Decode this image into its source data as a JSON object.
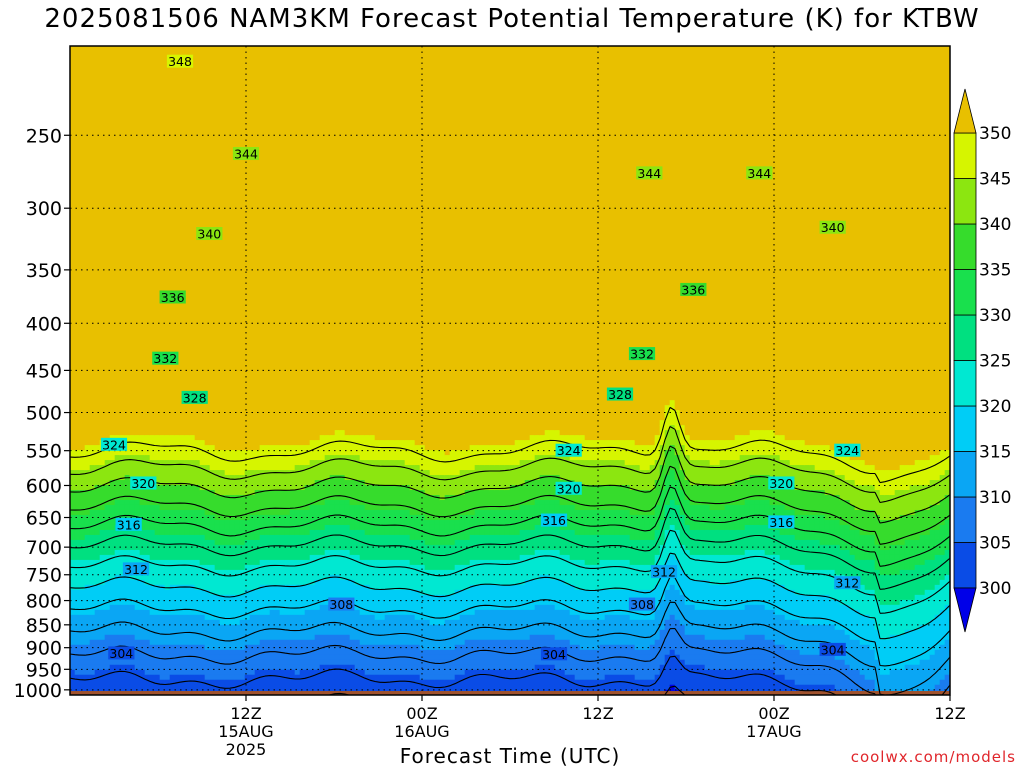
{
  "chart_data": {
    "type": "heatmap",
    "title": "2025081506 NAM3KM Forecast Potential Temperature (K) for KTBW",
    "xlabel": "Forecast Time (UTC)",
    "ylabel": "",
    "credit": "coolwx.com/models",
    "x": {
      "unit": "forecast hour",
      "range": [
        -6,
        54
      ]
    },
    "y_levels_hpa": [
      250,
      300,
      350,
      400,
      450,
      500,
      550,
      600,
      650,
      700,
      750,
      800,
      850,
      900,
      950,
      1000
    ],
    "ylim_hpa": [
      200,
      1013
    ],
    "x_ticks": [
      {
        "hour": 6,
        "lines": [
          "12Z",
          "15AUG",
          "2025"
        ]
      },
      {
        "hour": 18,
        "lines": [
          "00Z",
          "16AUG"
        ]
      },
      {
        "hour": 30,
        "lines": [
          "12Z"
        ]
      },
      {
        "hour": 42,
        "lines": [
          "00Z",
          "17AUG"
        ]
      },
      {
        "hour": 54,
        "lines": [
          "12Z"
        ]
      }
    ],
    "colorbar": {
      "levels": [
        300,
        305,
        310,
        315,
        320,
        325,
        330,
        335,
        340,
        345,
        350
      ],
      "colors": [
        "#0000e8",
        "#0a4ce6",
        "#1a7bf0",
        "#0aa6f4",
        "#00cdf6",
        "#00e8d2",
        "#00e080",
        "#19e04d",
        "#36dc2c",
        "#8ce610",
        "#d6f500",
        "#fdfb00",
        "#e8c000"
      ],
      "extend": "both"
    },
    "ground_color": "#a0522d",
    "contour_interval": 4,
    "contour_levels": [
      300,
      304,
      308,
      312,
      316,
      320,
      324,
      328,
      332,
      336,
      340,
      344,
      348
    ],
    "contour_labels": [
      {
        "value": 348,
        "hour": 1.5,
        "hpa": 208
      },
      {
        "value": 344,
        "hour": 6,
        "hpa": 262
      },
      {
        "value": 344,
        "hour": 33.5,
        "hpa": 275
      },
      {
        "value": 344,
        "hour": 41,
        "hpa": 275
      },
      {
        "value": 340,
        "hour": 3.5,
        "hpa": 320
      },
      {
        "value": 340,
        "hour": 46,
        "hpa": 315
      },
      {
        "value": 336,
        "hour": 1,
        "hpa": 375
      },
      {
        "value": 336,
        "hour": 36.5,
        "hpa": 368
      },
      {
        "value": 332,
        "hour": 0.5,
        "hpa": 437
      },
      {
        "value": 332,
        "hour": 33,
        "hpa": 432
      },
      {
        "value": 328,
        "hour": 2.5,
        "hpa": 482
      },
      {
        "value": 328,
        "hour": 31.5,
        "hpa": 478
      },
      {
        "value": 324,
        "hour": -3,
        "hpa": 542
      },
      {
        "value": 324,
        "hour": 28,
        "hpa": 550
      },
      {
        "value": 324,
        "hour": 47,
        "hpa": 550
      },
      {
        "value": 320,
        "hour": -1,
        "hpa": 597
      },
      {
        "value": 320,
        "hour": 28,
        "hpa": 605
      },
      {
        "value": 320,
        "hour": 42.5,
        "hpa": 597
      },
      {
        "value": 316,
        "hour": -2,
        "hpa": 662
      },
      {
        "value": 316,
        "hour": 27,
        "hpa": 655
      },
      {
        "value": 316,
        "hour": 42.5,
        "hpa": 658
      },
      {
        "value": 312,
        "hour": -1.5,
        "hpa": 740
      },
      {
        "value": 312,
        "hour": 34.5,
        "hpa": 745
      },
      {
        "value": 312,
        "hour": 47,
        "hpa": 766
      },
      {
        "value": 308,
        "hour": 12.5,
        "hpa": 808
      },
      {
        "value": 308,
        "hour": 33,
        "hpa": 808
      },
      {
        "value": 304,
        "hour": -2.5,
        "hpa": 913
      },
      {
        "value": 304,
        "hour": 27,
        "hpa": 915
      },
      {
        "value": 304,
        "hour": 46,
        "hpa": 905
      }
    ]
  }
}
